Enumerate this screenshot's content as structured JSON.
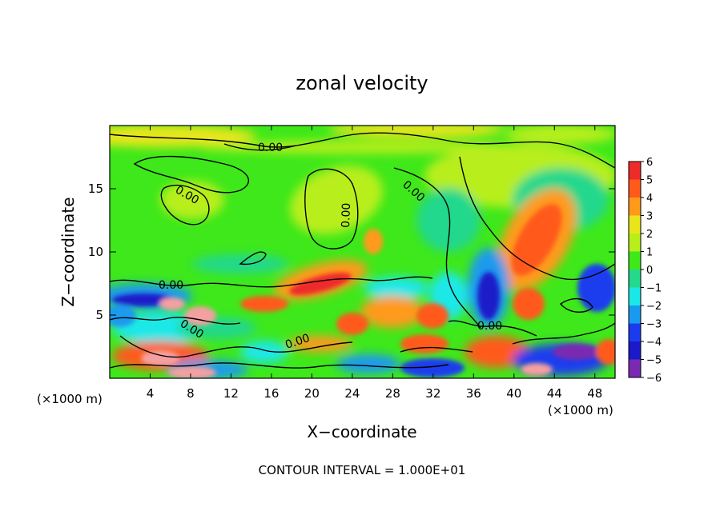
{
  "chart_data": {
    "type": "heatmap",
    "title": "zonal velocity",
    "xlabel": "X−coordinate",
    "ylabel": "Z−coordinate",
    "x_unit_left": "(×1000 m)",
    "x_unit_right": "(×1000 m)",
    "xlim": [
      0,
      50
    ],
    "ylim": [
      0,
      20
    ],
    "x_ticks": [
      4,
      8,
      12,
      16,
      20,
      24,
      28,
      32,
      36,
      40,
      44,
      48
    ],
    "y_ticks": [
      5,
      10,
      15
    ],
    "footer": "CONTOUR INTERVAL = 1.000E+01",
    "colorbar": {
      "levels": [
        6,
        5,
        4,
        3,
        2,
        1,
        0,
        -1,
        -2,
        -3,
        -4,
        -5,
        -6
      ],
      "labels": [
        "6",
        "5",
        "4",
        "3",
        "2",
        "1",
        "0",
        "−1",
        "−2",
        "−3",
        "−4",
        "−5",
        "−6"
      ],
      "colors": [
        "#f4a0a0",
        "#ee2a2a",
        "#ff5a1a",
        "#ff9a1a",
        "#e8e61a",
        "#b8ee1a",
        "#3ee81a",
        "#24d88c",
        "#1ae8e8",
        "#1a9aee",
        "#1a3cee",
        "#1a1ac8",
        "#7a2ab0"
      ]
    },
    "contour_labels": [
      "0.00",
      "0.00",
      "0.00",
      "0.00",
      "0.00",
      "0.00",
      "0.00",
      "0.00"
    ],
    "value_range": [
      -6,
      6
    ]
  }
}
